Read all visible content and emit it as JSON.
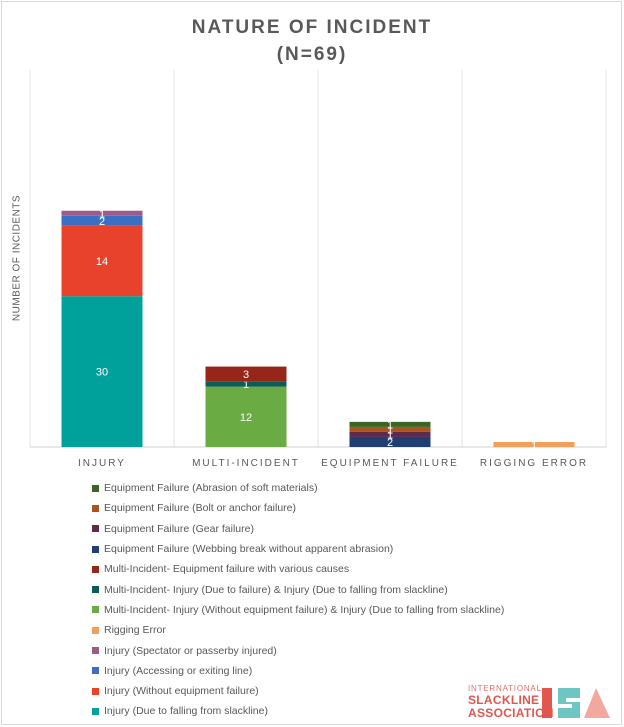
{
  "chart_data": {
    "type": "stacked-bar",
    "title_line1": "NATURE OF INCIDENT",
    "title_line2": "(N=69)",
    "ylabel": "NUMBER OF INCIDENTS",
    "xlabel": "",
    "ylim": [
      0,
      75
    ],
    "grid": "vertical category separators",
    "legend_position": "bottom-left",
    "categories": [
      "INJURY",
      "MULTI-INCIDENT",
      "EQUIPMENT FAILURE",
      "RIGGING ERROR"
    ],
    "series": [
      {
        "name": "Injury (Due to falling from slackline)",
        "color": "#00a19a",
        "values": [
          30,
          0,
          0,
          0
        ],
        "labels": [
          "30",
          "",
          "",
          ""
        ]
      },
      {
        "name": "Injury (Without equipment failure)",
        "color": "#e8412c",
        "values": [
          14,
          0,
          0,
          0
        ],
        "labels": [
          "14",
          "",
          "",
          ""
        ]
      },
      {
        "name": "Injury (Accessing or exiting line)",
        "color": "#3a6fc4",
        "values": [
          2,
          0,
          0,
          0
        ],
        "labels": [
          "2",
          "",
          "",
          ""
        ]
      },
      {
        "name": "Injury (Spectator or passerby injured)",
        "color": "#9c5b8a",
        "values": [
          1,
          0,
          0,
          0
        ],
        "labels": [
          "1",
          "",
          "",
          ""
        ]
      },
      {
        "name": "Rigging Error",
        "color": "#f0a05a",
        "values": [
          0,
          0,
          0,
          1
        ],
        "labels": [
          "",
          "",
          "",
          "1"
        ]
      },
      {
        "name": "Multi-Incident- Injury (Without equipment failure) & Injury (Due to falling from slackline)",
        "color": "#6aab44",
        "values": [
          0,
          12,
          0,
          0
        ],
        "labels": [
          "",
          "12",
          "",
          ""
        ]
      },
      {
        "name": "Multi-Incident- Injury (Due to failure) & Injury (Due to falling from slackline)",
        "color": "#0d5d57",
        "values": [
          0,
          1,
          0,
          0
        ],
        "labels": [
          "",
          "1",
          "",
          ""
        ]
      },
      {
        "name": "Multi-Incident- Equipment failure with various causes",
        "color": "#96251a",
        "values": [
          0,
          3,
          0,
          0
        ],
        "labels": [
          "",
          "3",
          "",
          ""
        ]
      },
      {
        "name": "Equipment Failure (Webbing break without apparent abrasion)",
        "color": "#1f3f72",
        "values": [
          0,
          0,
          2,
          0
        ],
        "labels": [
          "",
          "",
          "2",
          ""
        ]
      },
      {
        "name": "Equipment Failure (Gear failure)",
        "color": "#5c2b4c",
        "values": [
          0,
          0,
          1,
          0
        ],
        "labels": [
          "",
          "",
          "1",
          ""
        ]
      },
      {
        "name": "Equipment Failure (Bolt or anchor failure)",
        "color": "#a8541c",
        "values": [
          0,
          0,
          1,
          0
        ],
        "labels": [
          "",
          "",
          "1",
          ""
        ]
      },
      {
        "name": "Equipment Failure (Abrasion of soft materials)",
        "color": "#3b6427",
        "values": [
          0,
          0,
          1,
          0
        ],
        "labels": [
          "",
          "",
          "1",
          ""
        ]
      }
    ],
    "legend_order": [
      11,
      10,
      9,
      8,
      7,
      6,
      5,
      4,
      3,
      2,
      1,
      0
    ]
  },
  "logo": {
    "line1": "INTERNATIONAL",
    "line2": "SLACKLINE",
    "line3": "ASSOCIATION",
    "colors": [
      "#e0574f",
      "#6ec6c2",
      "#f2a89e"
    ]
  }
}
